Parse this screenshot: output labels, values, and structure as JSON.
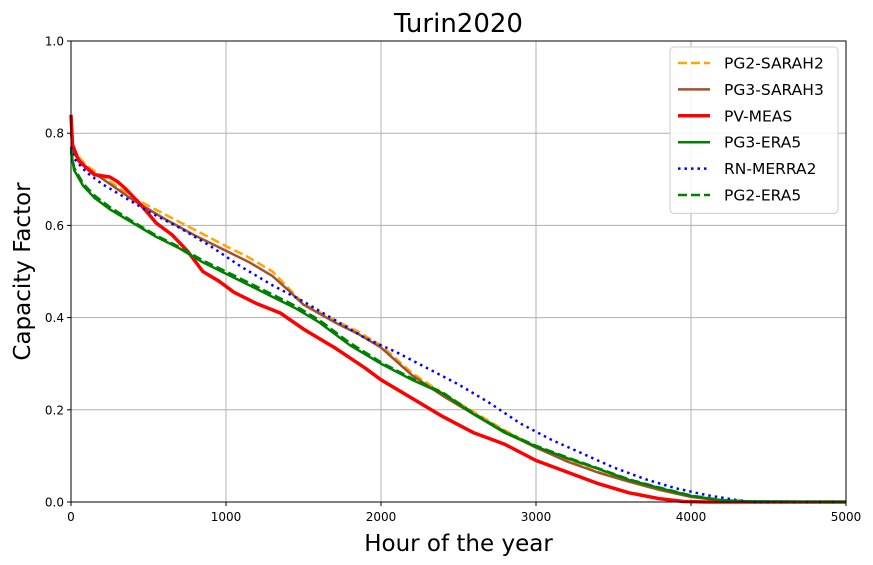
{
  "chart_data": {
    "type": "line",
    "title": "Turin2020",
    "xlabel": "Hour of the year",
    "ylabel": "Capacity Factor",
    "xlim": [
      0,
      5000
    ],
    "ylim": [
      0,
      1.0
    ],
    "xticks": [
      0,
      1000,
      2000,
      3000,
      4000,
      5000
    ],
    "yticks": [
      0.0,
      0.2,
      0.4,
      0.6,
      0.8,
      1.0
    ],
    "xtick_labels": [
      "0",
      "1000",
      "2000",
      "3000",
      "4000",
      "5000"
    ],
    "ytick_labels": [
      "0.0",
      "0.2",
      "0.4",
      "0.6",
      "0.8",
      "1.0"
    ],
    "grid": true,
    "legend_position": "top-right",
    "series": [
      {
        "name": "PG2-SARAH2",
        "color": "#ffa500",
        "style": "dashed",
        "x": [
          0,
          20,
          100,
          250,
          400,
          600,
          800,
          1000,
          1150,
          1300,
          1400,
          1500,
          1700,
          1850,
          2000,
          2200,
          2400,
          2600,
          2800,
          3000,
          3200,
          3400,
          3600,
          3800,
          4000,
          4200,
          4400,
          5000
        ],
        "y": [
          0.8,
          0.76,
          0.73,
          0.695,
          0.66,
          0.625,
          0.59,
          0.555,
          0.53,
          0.5,
          0.465,
          0.43,
          0.395,
          0.37,
          0.34,
          0.28,
          0.235,
          0.195,
          0.155,
          0.12,
          0.09,
          0.065,
          0.045,
          0.027,
          0.012,
          0.003,
          0.0,
          0.0
        ]
      },
      {
        "name": "PG3-SARAH3",
        "color": "#a0522d",
        "style": "solid",
        "x": [
          0,
          20,
          100,
          250,
          400,
          600,
          800,
          1000,
          1150,
          1300,
          1400,
          1500,
          1700,
          1850,
          2000,
          2200,
          2400,
          2600,
          2800,
          3000,
          3200,
          3400,
          3600,
          3800,
          4000,
          4200,
          4400,
          5000
        ],
        "y": [
          0.8,
          0.755,
          0.725,
          0.69,
          0.655,
          0.615,
          0.578,
          0.545,
          0.52,
          0.49,
          0.46,
          0.428,
          0.39,
          0.365,
          0.335,
          0.275,
          0.23,
          0.19,
          0.152,
          0.118,
          0.088,
          0.064,
          0.044,
          0.026,
          0.011,
          0.003,
          0.0,
          0.0
        ]
      },
      {
        "name": "PV-MEAS",
        "color": "#ff0000",
        "style": "solid-thick",
        "x": [
          0,
          10,
          50,
          150,
          250,
          300,
          350,
          450,
          550,
          650,
          750,
          850,
          950,
          1050,
          1200,
          1350,
          1500,
          1700,
          1900,
          2000,
          2200,
          2400,
          2600,
          2800,
          3000,
          3200,
          3400,
          3600,
          3800,
          3950,
          4100,
          5000
        ],
        "y": [
          0.84,
          0.775,
          0.74,
          0.71,
          0.705,
          0.695,
          0.68,
          0.645,
          0.605,
          0.58,
          0.545,
          0.5,
          0.48,
          0.455,
          0.43,
          0.41,
          0.375,
          0.335,
          0.29,
          0.265,
          0.225,
          0.185,
          0.15,
          0.125,
          0.09,
          0.065,
          0.04,
          0.02,
          0.007,
          0.001,
          0.0,
          0.0
        ]
      },
      {
        "name": "PG3-ERA5",
        "color": "#008000",
        "style": "solid",
        "x": [
          0,
          20,
          80,
          150,
          250,
          400,
          550,
          700,
          850,
          1000,
          1150,
          1300,
          1450,
          1600,
          1800,
          2000,
          2200,
          2400,
          2600,
          2800,
          3000,
          3200,
          3400,
          3600,
          3800,
          4000,
          4200,
          4400,
          5000
        ],
        "y": [
          0.76,
          0.72,
          0.685,
          0.66,
          0.635,
          0.605,
          0.575,
          0.55,
          0.52,
          0.495,
          0.47,
          0.445,
          0.42,
          0.39,
          0.34,
          0.3,
          0.265,
          0.235,
          0.19,
          0.15,
          0.12,
          0.095,
          0.072,
          0.048,
          0.03,
          0.013,
          0.004,
          0.001,
          0.0
        ]
      },
      {
        "name": "RN-MERRA2",
        "color": "#0000ff",
        "style": "dotted",
        "x": [
          0,
          20,
          100,
          200,
          350,
          500,
          700,
          900,
          1100,
          1300,
          1500,
          1700,
          1900,
          2100,
          2300,
          2500,
          2700,
          2900,
          3100,
          3300,
          3500,
          3700,
          3900,
          4100,
          4300,
          4400,
          5000
        ],
        "y": [
          0.77,
          0.745,
          0.715,
          0.69,
          0.66,
          0.63,
          0.595,
          0.555,
          0.51,
          0.47,
          0.435,
          0.395,
          0.355,
          0.325,
          0.29,
          0.255,
          0.215,
          0.17,
          0.135,
          0.105,
          0.075,
          0.05,
          0.03,
          0.015,
          0.004,
          0.0,
          0.0
        ]
      },
      {
        "name": "PG2-ERA5",
        "color": "#008000",
        "style": "dashed",
        "x": [
          0,
          20,
          80,
          150,
          250,
          400,
          550,
          700,
          850,
          1000,
          1150,
          1300,
          1450,
          1600,
          1800,
          2000,
          2200,
          2400,
          2600,
          2800,
          3000,
          3200,
          3400,
          3600,
          3800,
          4000,
          4200,
          4400,
          5000
        ],
        "y": [
          0.765,
          0.725,
          0.69,
          0.665,
          0.64,
          0.608,
          0.578,
          0.553,
          0.524,
          0.5,
          0.475,
          0.45,
          0.425,
          0.395,
          0.345,
          0.303,
          0.268,
          0.237,
          0.192,
          0.152,
          0.122,
          0.097,
          0.073,
          0.049,
          0.031,
          0.014,
          0.004,
          0.001,
          0.0
        ]
      }
    ]
  }
}
